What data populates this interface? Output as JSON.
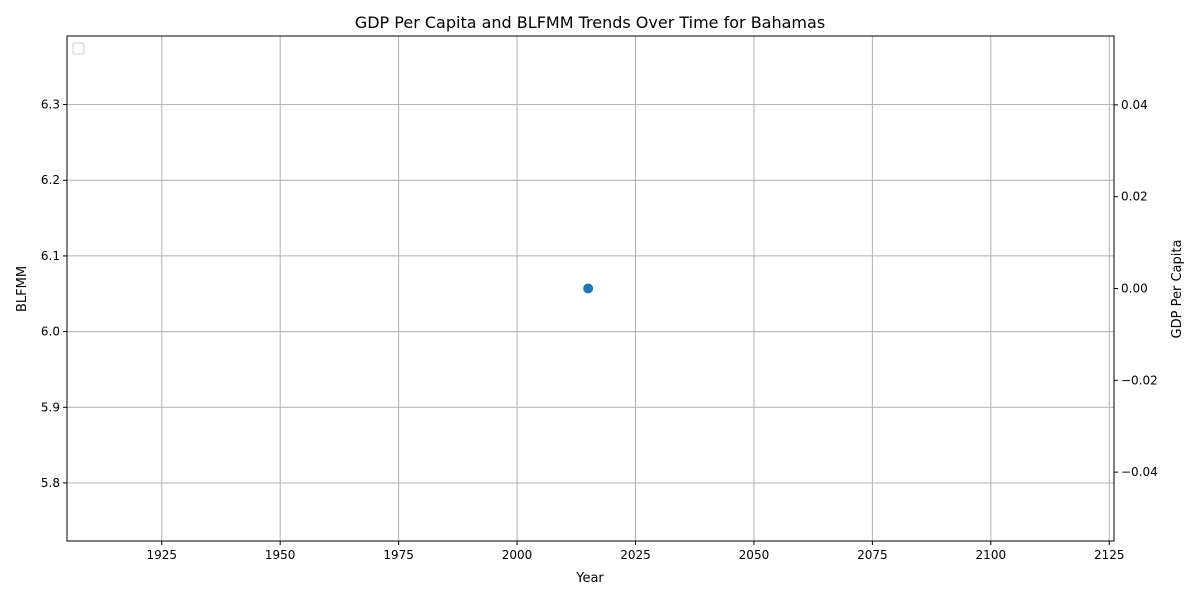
{
  "chart_data": {
    "type": "scatter",
    "title": "GDP Per Capita and BLFMM Trends Over Time for Bahamas",
    "xlabel": "Year",
    "ylabel_left": "BLFMM",
    "ylabel_right": "GDP Per Capita",
    "xlim": [
      1905,
      2126
    ],
    "ylim_left": [
      5.7233,
      6.3906
    ],
    "ylim_right": [
      -0.055,
      0.055
    ],
    "x_ticks": [
      1925,
      1950,
      1975,
      2000,
      2025,
      2050,
      2075,
      2100,
      2125
    ],
    "y_left_ticks": [
      5.8,
      5.9,
      6.0,
      6.1,
      6.2,
      6.3
    ],
    "y_left_tick_labels": [
      "5.8",
      "5.9",
      "6.0",
      "6.1",
      "6.2",
      "6.3"
    ],
    "y_right_ticks": [
      -0.04,
      -0.02,
      0.0,
      0.02,
      0.04
    ],
    "y_right_tick_labels": [
      "−0.04",
      "−0.02",
      "0.00",
      "0.02",
      "0.04"
    ],
    "grid": true,
    "legend": "upper-left (empty)",
    "series": [
      {
        "axis": "left",
        "x": [
          2015
        ],
        "y": [
          6.057
        ],
        "color": "#1f77b4"
      }
    ],
    "colors": {
      "left_axis_label": "#1f77b4",
      "right_axis_label": "#2ca02c"
    }
  }
}
